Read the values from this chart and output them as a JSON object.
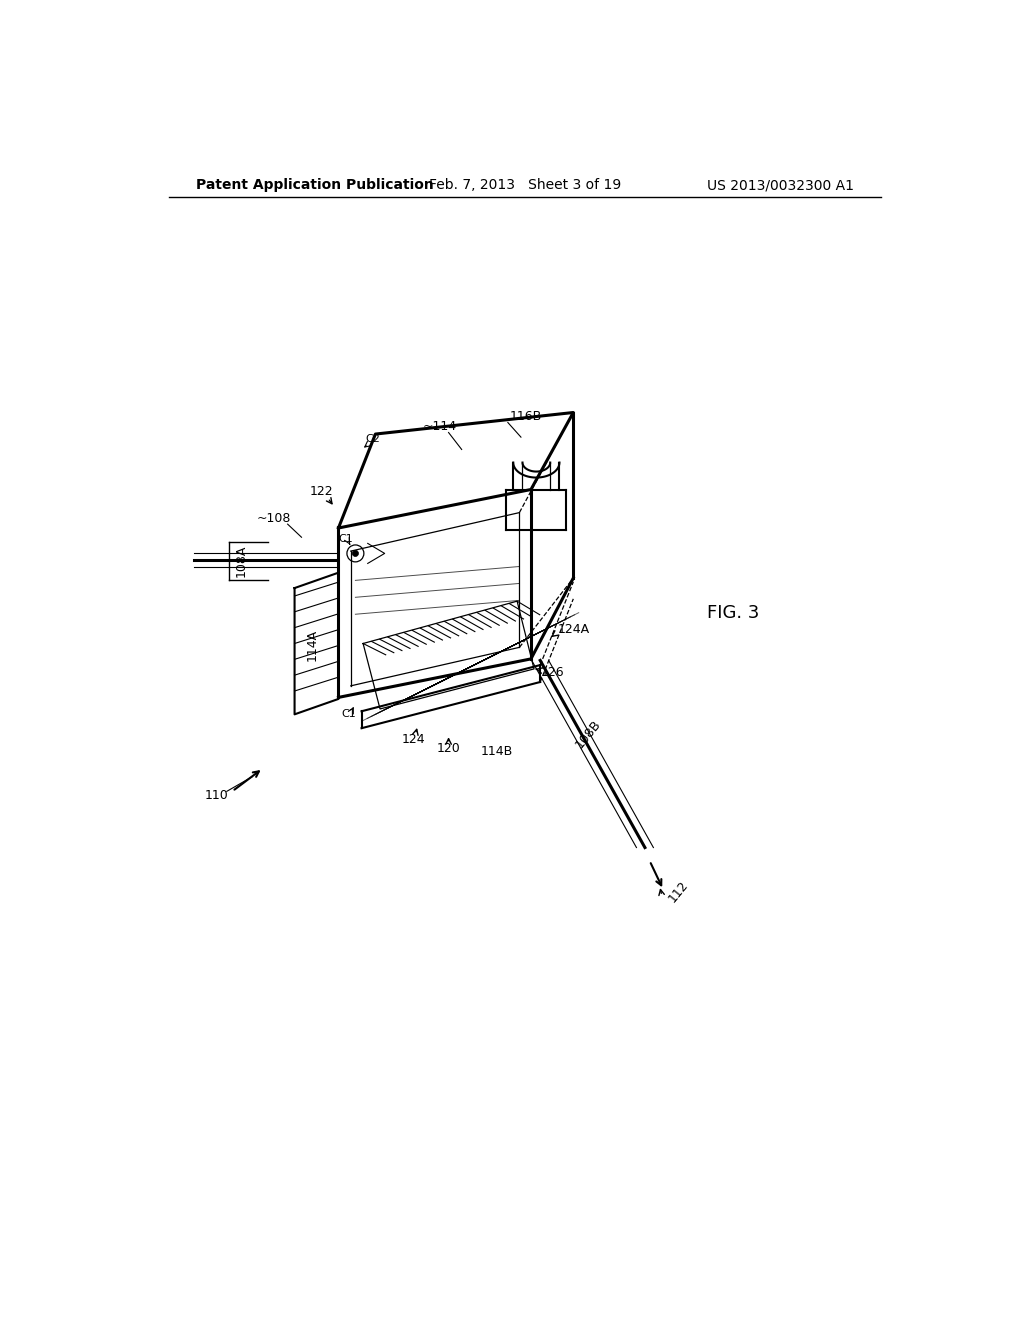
{
  "header_left": "Patent Application Publication",
  "header_center": "Feb. 7, 2013   Sheet 3 of 19",
  "header_right": "US 2013/0032300 A1",
  "figure_label": "FIG. 3",
  "bg_color": "#ffffff",
  "line_color": "#000000"
}
